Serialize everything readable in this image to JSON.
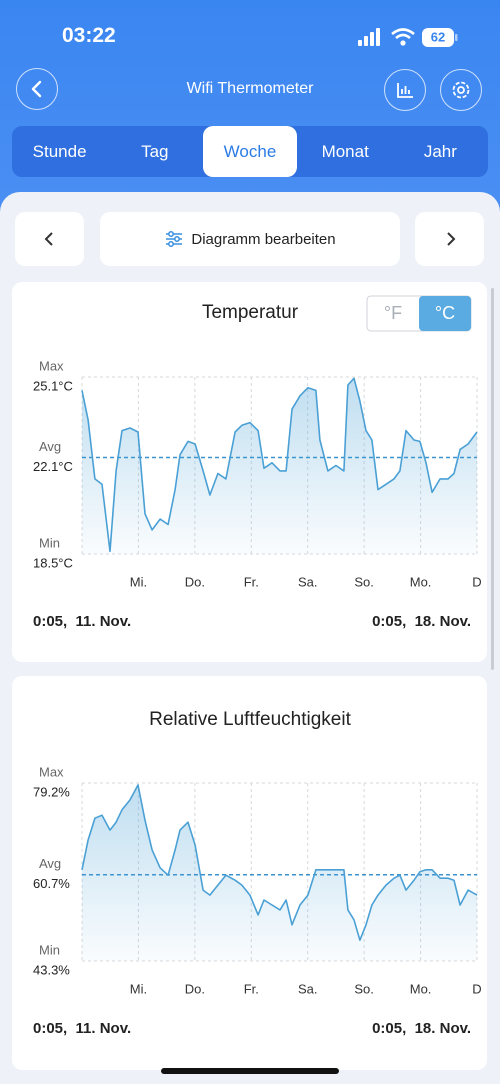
{
  "status_bar": {
    "time": "03:22",
    "battery": "62"
  },
  "header": {
    "title": "Wifi Thermometer"
  },
  "tabs": [
    "Stunde",
    "Tag",
    "Woche",
    "Monat",
    "Jahr"
  ],
  "active_tab": 2,
  "toolbar": {
    "label": "Diagramm bearbeiten"
  },
  "unit_toggle": {
    "options": [
      "°F",
      "°C"
    ],
    "selected": 1
  },
  "chart_data": [
    {
      "type": "line",
      "title": "Temperatur",
      "color": "#4aa0d5",
      "xlim": [
        0,
        168
      ],
      "xticks": [
        {
          "value": 24,
          "label": "Mi."
        },
        {
          "value": 48,
          "label": "Do."
        },
        {
          "value": 72,
          "label": "Fr."
        },
        {
          "value": 96,
          "label": "Sa."
        },
        {
          "value": 120,
          "label": "So."
        },
        {
          "value": 144,
          "label": "Mo."
        },
        {
          "value": 168,
          "label": "D"
        }
      ],
      "ylim": [
        18.5,
        25.1
      ],
      "yticks": [
        {
          "value": 25.1,
          "label": "25.1°C"
        },
        {
          "value": 22.1,
          "label": "22.1°C"
        },
        {
          "value": 18.5,
          "label": "18.5°C"
        }
      ],
      "ytick_names": [
        "Max",
        "Avg",
        "Min"
      ],
      "start_label": "0:05,  11. Nov.",
      "end_label": "0:05,  18. Nov.",
      "x": [
        0,
        2.6,
        5.5,
        8.5,
        11.9,
        14.5,
        17.0,
        20.4,
        23.8,
        26.8,
        29.8,
        33.2,
        36.6,
        39.6,
        41.7,
        45.1,
        48.1,
        51.5,
        54.4,
        57.8,
        61.2,
        65.1,
        68.0,
        71.4,
        74.9,
        77.4,
        80.8,
        84.2,
        86.8,
        89.3,
        92.7,
        96.1,
        99.5,
        101.2,
        104.6,
        108.0,
        111.4,
        113.1,
        115.7,
        118.2,
        120.8,
        123.3,
        125.9,
        129.3,
        132.7,
        135.2,
        137.8,
        141.2,
        143.7,
        146.3,
        148.9,
        152.3,
        155.7,
        158.2,
        160.8,
        164.2,
        168.0
      ],
      "values": [
        24.6,
        23.5,
        21.3,
        21.1,
        18.6,
        21.6,
        23.1,
        23.2,
        23.05,
        20.0,
        19.4,
        19.8,
        19.6,
        20.9,
        22.2,
        22.7,
        22.6,
        21.6,
        20.7,
        21.5,
        21.3,
        23.05,
        23.3,
        23.4,
        23.1,
        21.7,
        21.9,
        21.6,
        21.6,
        23.9,
        24.4,
        24.7,
        24.6,
        22.75,
        21.6,
        21.8,
        21.6,
        24.8,
        25.05,
        24.2,
        23.1,
        22.75,
        20.9,
        21.1,
        21.3,
        21.6,
        23.1,
        22.75,
        22.7,
        21.9,
        20.8,
        21.3,
        21.3,
        21.5,
        22.4,
        22.6,
        23.05
      ]
    },
    {
      "type": "line",
      "title": "Relative Luftfeuchtigkeit",
      "color": "#4aa0d5",
      "xlim": [
        0,
        168
      ],
      "xticks": [
        {
          "value": 24,
          "label": "Mi."
        },
        {
          "value": 48,
          "label": "Do."
        },
        {
          "value": 72,
          "label": "Fr."
        },
        {
          "value": 96,
          "label": "Sa."
        },
        {
          "value": 120,
          "label": "So."
        },
        {
          "value": 144,
          "label": "Mo."
        },
        {
          "value": 168,
          "label": "D"
        }
      ],
      "ylim": [
        43.3,
        79.2
      ],
      "yticks": [
        {
          "value": 79.2,
          "label": "79.2%"
        },
        {
          "value": 60.7,
          "label": "60.7%"
        },
        {
          "value": 43.3,
          "label": "43.3%"
        }
      ],
      "ytick_names": [
        "Max",
        "Avg",
        "Min"
      ],
      "start_label": "0:05,  11. Nov.",
      "end_label": "0:05,  18. Nov.",
      "x": [
        0,
        2.6,
        5.5,
        8.5,
        11.9,
        14.5,
        17.0,
        20.4,
        23.8,
        26.8,
        29.8,
        33.2,
        36.6,
        39.6,
        41.7,
        45.1,
        48.1,
        51.5,
        54.4,
        57.8,
        61.2,
        65.1,
        68.0,
        71.4,
        74.9,
        77.4,
        80.8,
        84.2,
        86.8,
        89.3,
        92.7,
        96.1,
        99.5,
        101.2,
        104.6,
        108.0,
        111.4,
        113.1,
        115.7,
        118.2,
        120.8,
        123.3,
        125.9,
        129.3,
        132.7,
        135.2,
        137.8,
        141.2,
        143.7,
        146.3,
        148.9,
        152.3,
        155.7,
        158.2,
        160.8,
        164.2,
        168.0
      ],
      "values": [
        61.7,
        67.7,
        72.1,
        72.7,
        69.7,
        71.3,
        73.8,
        75.8,
        78.8,
        71.7,
        65.7,
        62.1,
        60.6,
        65.7,
        69.7,
        71.3,
        66.7,
        57.6,
        56.6,
        58.6,
        60.6,
        59.6,
        58.6,
        56.6,
        52.6,
        55.6,
        54.6,
        53.6,
        55.6,
        50.6,
        54.6,
        56.6,
        61.7,
        61.7,
        61.7,
        61.7,
        61.7,
        53.6,
        51.6,
        47.5,
        50.6,
        54.6,
        56.6,
        58.6,
        60.0,
        60.6,
        57.6,
        59.6,
        61.3,
        61.7,
        61.7,
        60.0,
        60.0,
        59.6,
        54.6,
        57.6,
        56.6
      ]
    }
  ]
}
